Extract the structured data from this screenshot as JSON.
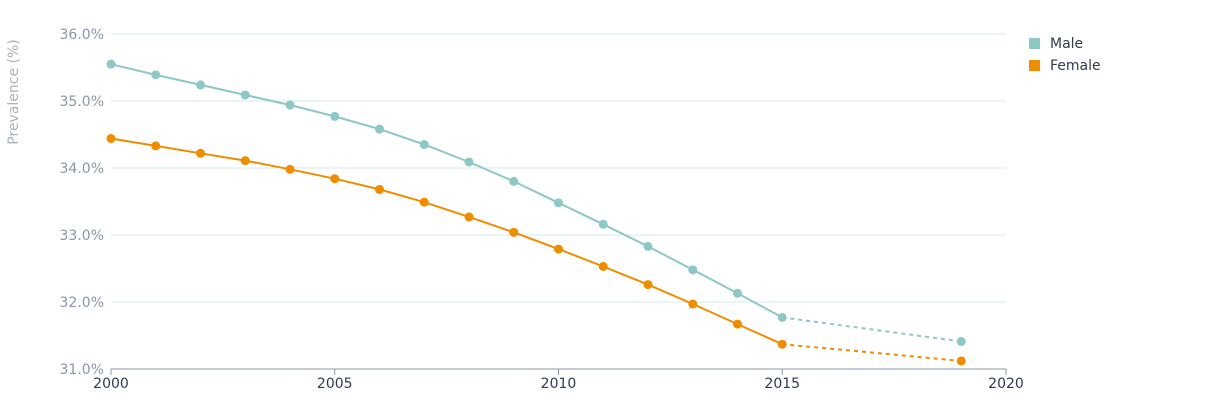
{
  "chart_data": {
    "type": "line",
    "title": "",
    "xlabel": "",
    "ylabel": "Prevalence (%)",
    "xlim": [
      2000,
      2020
    ],
    "ylim": [
      31.0,
      36.0
    ],
    "x_ticks": [
      "2000",
      "2005",
      "2010",
      "2015",
      "2020"
    ],
    "y_ticks": [
      "31.0%",
      "32.0%",
      "33.0%",
      "34.0%",
      "35.0%",
      "36.0%"
    ],
    "grid": "horizontal",
    "legend_position": "top-right",
    "series": [
      {
        "name": "Male",
        "color": "#8dc7c6",
        "x": [
          2000,
          2001,
          2002,
          2003,
          2004,
          2005,
          2006,
          2007,
          2008,
          2009,
          2010,
          2011,
          2012,
          2013,
          2014,
          2015
        ],
        "values": [
          35.55,
          35.39,
          35.24,
          35.09,
          34.94,
          34.77,
          34.58,
          34.35,
          34.09,
          33.8,
          33.48,
          33.16,
          32.83,
          32.48,
          32.13,
          31.77
        ],
        "projection": {
          "x": [
            2015,
            2019
          ],
          "values": [
            31.77,
            31.41
          ]
        }
      },
      {
        "name": "Female",
        "color": "#ef8c00",
        "x": [
          2000,
          2001,
          2002,
          2003,
          2004,
          2005,
          2006,
          2007,
          2008,
          2009,
          2010,
          2011,
          2012,
          2013,
          2014,
          2015
        ],
        "values": [
          34.44,
          34.33,
          34.22,
          34.11,
          33.98,
          33.84,
          33.68,
          33.49,
          33.27,
          33.04,
          32.79,
          32.53,
          32.26,
          31.97,
          31.67,
          31.37
        ],
        "projection": {
          "x": [
            2015,
            2019
          ],
          "values": [
            31.37,
            31.12
          ]
        }
      }
    ]
  }
}
